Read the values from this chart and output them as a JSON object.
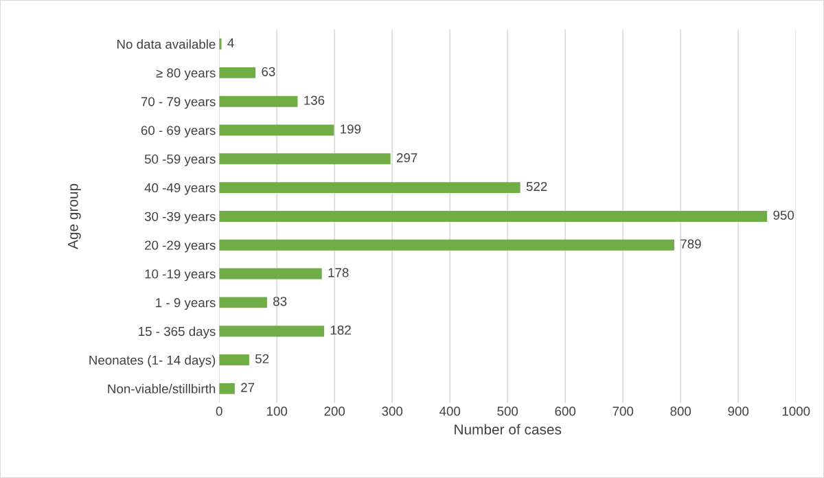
{
  "chart_data": {
    "type": "bar",
    "orientation": "horizontal",
    "xlabel": "Number of cases",
    "ylabel": "Age group",
    "categories": [
      "No data available",
      "≥ 80 years",
      "70 - 79 years",
      "60 - 69 years",
      "50 -59 years",
      "40 -49 years",
      "30 -39 years",
      "20 -29 years",
      "10 -19 years",
      "1 - 9 years",
      "15 - 365 days",
      "Neonates (1- 14 days)",
      "Non-viable/stillbirth"
    ],
    "values": [
      4,
      63,
      136,
      199,
      297,
      522,
      950,
      789,
      178,
      83,
      182,
      52,
      27
    ],
    "color": "#70ad47",
    "xlim": [
      0,
      1000
    ],
    "xticks": [
      0,
      100,
      200,
      300,
      400,
      500,
      600,
      700,
      800,
      900,
      1000
    ],
    "grid": "x",
    "data_labels": true
  }
}
